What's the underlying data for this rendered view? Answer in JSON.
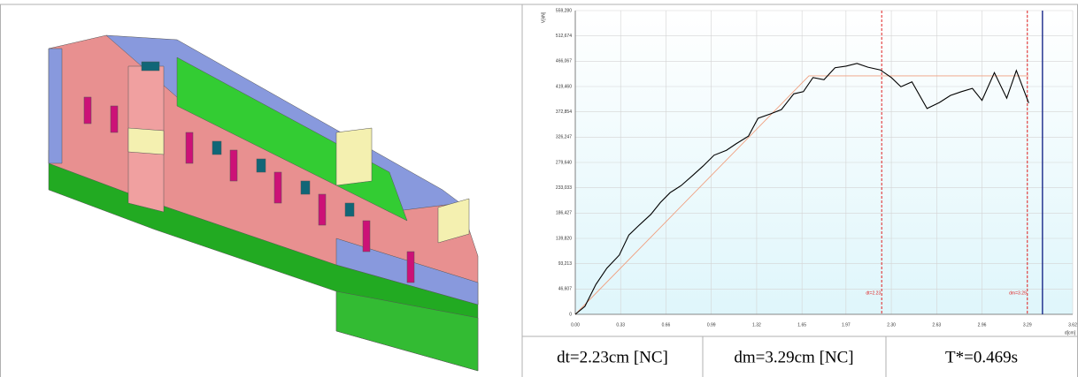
{
  "chart_data": {
    "type": "line",
    "ylabel": "V[kN]",
    "xlabel": "d[cm]",
    "xlim": [
      0,
      3.62
    ],
    "ylim": [
      0,
      559.28
    ],
    "xticks": [
      {
        "value": 0,
        "label": "0.00"
      },
      0.33,
      0.66,
      0.99,
      1.32,
      1.65,
      1.97,
      {
        "value": 2.3,
        "label": "2.30"
      },
      2.63,
      2.96,
      3.29,
      3.62
    ],
    "yticks": [
      0,
      {
        "value": 46.607,
        "label": "46,607"
      },
      {
        "value": 93.213,
        "label": "93,213"
      },
      {
        "value": 139.82,
        "label": "139,820"
      },
      {
        "value": 186.427,
        "label": "186,427"
      },
      {
        "value": 233.033,
        "label": "233,033"
      },
      {
        "value": 279.64,
        "label": "279,640"
      },
      {
        "value": 326.247,
        "label": "326,247"
      },
      {
        "value": 372.854,
        "label": "372,854"
      },
      {
        "value": 419.46,
        "label": "419,460"
      },
      {
        "value": 466.067,
        "label": "466,067"
      },
      {
        "value": 512.674,
        "label": "512,674"
      },
      {
        "value": 559.28,
        "label": "559,280"
      }
    ],
    "grid": true,
    "series": [
      {
        "color": "#000000",
        "x": [
          0,
          0.07,
          0.15,
          0.23,
          0.32,
          0.39,
          0.46,
          0.55,
          0.62,
          0.69,
          0.77,
          0.86,
          0.93,
          1.01,
          1.1,
          1.17,
          1.26,
          1.33,
          1.42,
          1.5,
          1.59,
          1.66,
          1.73,
          1.81,
          1.89,
          1.97,
          2.05,
          2.13,
          2.22,
          2.3,
          2.37,
          2.45,
          2.56,
          2.65,
          2.73,
          2.81,
          2.89,
          2.96,
          3.05,
          3.14,
          3.21,
          3.3
        ],
        "values": [
          0,
          14.6,
          55,
          85,
          109,
          146,
          163,
          184,
          206,
          224,
          237,
          257,
          273,
          293,
          302,
          314,
          328,
          361,
          369,
          377,
          406,
          410,
          436,
          432,
          454,
          457,
          462,
          455,
          450,
          436,
          419,
          428,
          379,
          390,
          403,
          410,
          416,
          394,
          445,
          398,
          449,
          389
        ]
      },
      {
        "color": "#f0a080",
        "x": [
          0,
          1.7,
          3.3
        ],
        "values": [
          0,
          439,
          439
        ]
      }
    ],
    "vlines": [
      {
        "value": 2.23,
        "label": "dt=2.23",
        "color": "#e02020",
        "dashed": true
      },
      {
        "value": 3.29,
        "label": "dm=3.29",
        "color": "#e02020",
        "dashed": true
      },
      {
        "value": 3.4,
        "color": "#1a2a8a",
        "dashed": false
      }
    ]
  },
  "table": {
    "cells": [
      "dt=2.23cm [NC]",
      "dm=3.29cm [NC]",
      "T*=0.469s"
    ]
  }
}
